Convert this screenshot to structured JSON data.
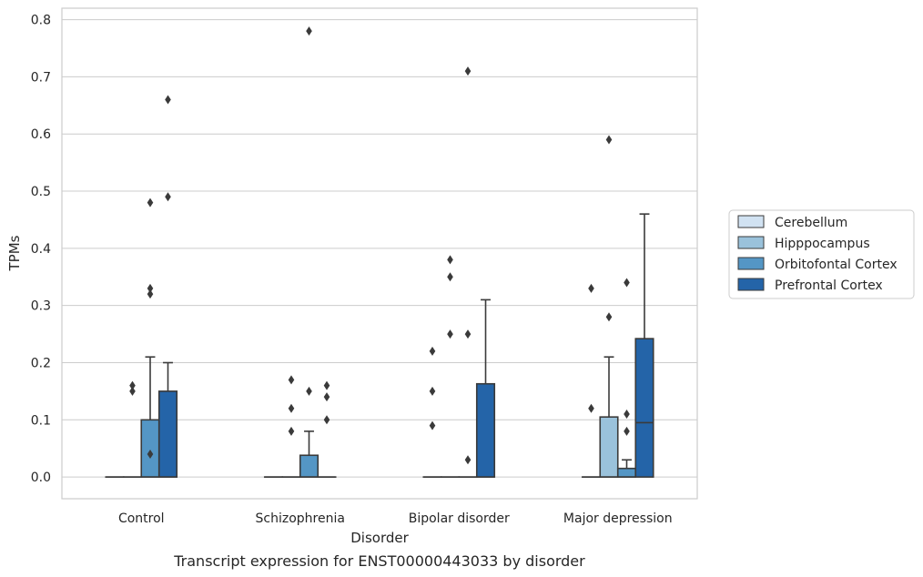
{
  "chart_data": {
    "type": "box",
    "caption": "Transcript expression for ENST00000443033 by disorder",
    "xlabel": "Disorder",
    "ylabel": "TPMs",
    "ylim": [
      -0.038,
      0.82
    ],
    "yticks": [
      "0.0",
      "0.1",
      "0.2",
      "0.3",
      "0.4",
      "0.5",
      "0.6",
      "0.7",
      "0.8"
    ],
    "categories": [
      "Control",
      "Schizophrenia",
      "Bipolar disorder",
      "Major depression"
    ],
    "grid": true,
    "legend_position": "right",
    "series": [
      {
        "name": "Cerebellum",
        "color": "#d1e2f2",
        "boxes": [
          {
            "q1": 0,
            "median": 0,
            "q3": 0,
            "whisker_low": 0,
            "whisker_high": 0,
            "outliers": []
          },
          {
            "q1": 0,
            "median": 0,
            "q3": 0,
            "whisker_low": 0,
            "whisker_high": 0,
            "outliers": []
          },
          {
            "q1": 0,
            "median": 0,
            "q3": 0,
            "whisker_low": 0,
            "whisker_high": 0,
            "outliers": [
              0.22,
              0.15,
              0.09
            ]
          },
          {
            "q1": 0,
            "median": 0,
            "q3": 0,
            "whisker_low": 0,
            "whisker_high": 0,
            "outliers": [
              0.33,
              0.12
            ]
          }
        ]
      },
      {
        "name": "Hipppocampus",
        "color": "#9ac2db",
        "boxes": [
          {
            "q1": 0,
            "median": 0,
            "q3": 0,
            "whisker_low": 0,
            "whisker_high": 0,
            "outliers": [
              0.16,
              0.15
            ]
          },
          {
            "q1": 0,
            "median": 0,
            "q3": 0,
            "whisker_low": 0,
            "whisker_high": 0,
            "outliers": [
              0.17,
              0.12,
              0.08
            ]
          },
          {
            "q1": 0,
            "median": 0,
            "q3": 0,
            "whisker_low": 0,
            "whisker_high": 0,
            "outliers": [
              0.38,
              0.35,
              0.25
            ]
          },
          {
            "q1": 0,
            "median": 0,
            "q3": 0.105,
            "whisker_low": 0,
            "whisker_high": 0.21,
            "outliers": [
              0.59,
              0.28
            ]
          }
        ]
      },
      {
        "name": "Orbitofontal Cortex",
        "color": "#5496c5",
        "boxes": [
          {
            "q1": 0,
            "median": 0,
            "q3": 0.1,
            "whisker_low": 0,
            "whisker_high": 0.21,
            "outliers": [
              0.48,
              0.33,
              0.32,
              0.04
            ]
          },
          {
            "q1": 0,
            "median": 0,
            "q3": 0.038,
            "whisker_low": 0,
            "whisker_high": 0.08,
            "outliers": [
              0.78,
              0.15
            ]
          },
          {
            "q1": 0,
            "median": 0,
            "q3": 0,
            "whisker_low": 0,
            "whisker_high": 0,
            "outliers": [
              0.71,
              0.25,
              0.03
            ]
          },
          {
            "q1": 0,
            "median": 0,
            "q3": 0.015,
            "whisker_low": 0,
            "whisker_high": 0.03,
            "outliers": [
              0.34,
              0.11,
              0.08
            ]
          }
        ]
      },
      {
        "name": "Prefrontal Cortex",
        "color": "#2464a8",
        "boxes": [
          {
            "q1": 0,
            "median": 0,
            "q3": 0.15,
            "whisker_low": 0,
            "whisker_high": 0.2,
            "outliers": [
              0.66,
              0.49
            ]
          },
          {
            "q1": 0,
            "median": 0,
            "q3": 0,
            "whisker_low": 0,
            "whisker_high": 0,
            "outliers": [
              0.16,
              0.14,
              0.1
            ]
          },
          {
            "q1": 0,
            "median": 0,
            "q3": 0.163,
            "whisker_low": 0,
            "whisker_high": 0.31,
            "outliers": []
          },
          {
            "q1": 0,
            "median": 0.095,
            "q3": 0.242,
            "whisker_low": 0,
            "whisker_high": 0.46,
            "outliers": []
          }
        ]
      }
    ]
  }
}
